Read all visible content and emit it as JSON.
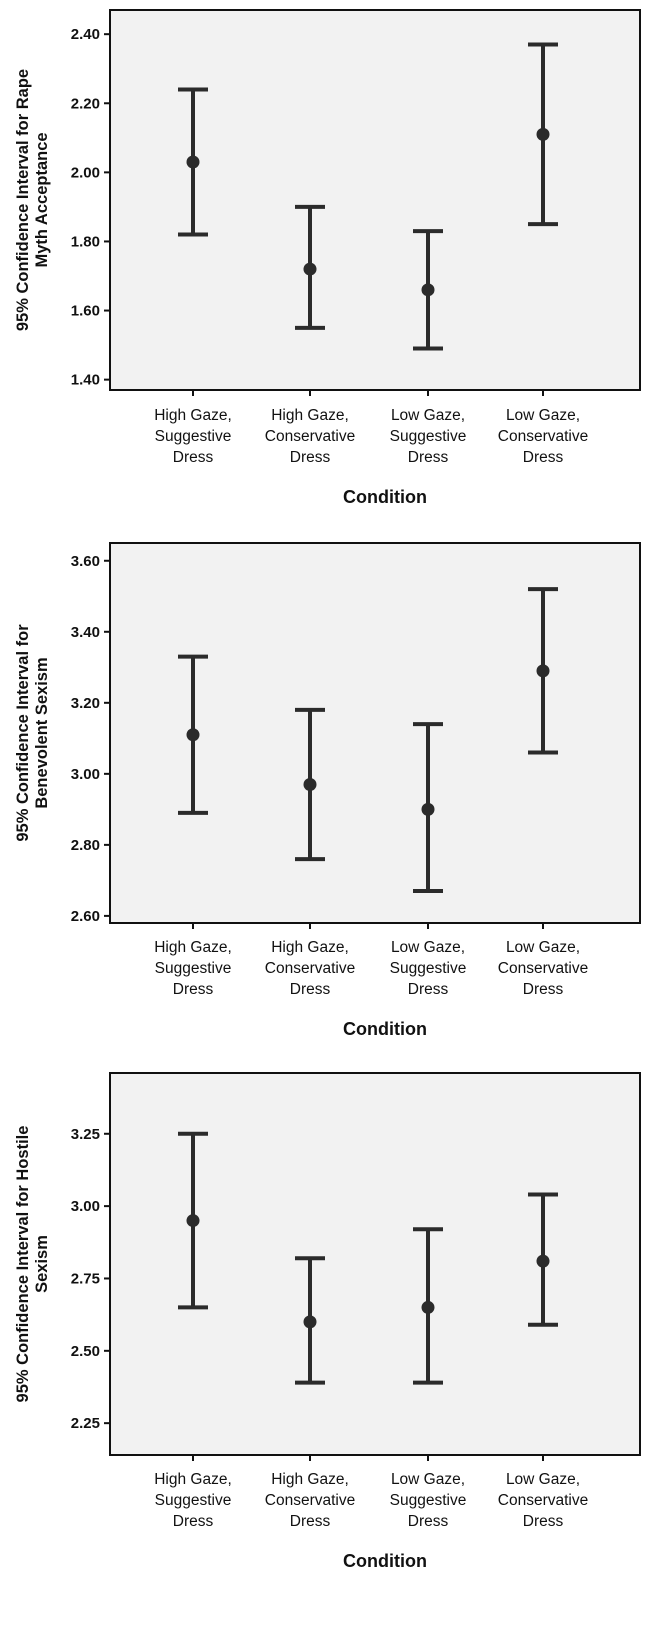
{
  "colors": {
    "plot_bg": "#f2f2f2",
    "frame": "#111111",
    "marker": "#2b2b2b",
    "text": "#111111"
  },
  "chart_data": [
    {
      "type": "errorbar",
      "title": "",
      "xlabel": "Condition",
      "ylabel_lines": [
        "95% Confidence Interval for Rape",
        "Myth Acceptance"
      ],
      "ylim": [
        1.37,
        2.47
      ],
      "yticks": [
        1.4,
        1.6,
        1.8,
        2.0,
        2.2,
        2.4
      ],
      "ytick_labels": [
        "1.40",
        "1.60",
        "1.80",
        "2.00",
        "2.20",
        "2.40"
      ],
      "grid": false,
      "categories": [
        [
          "High Gaze,",
          "Suggestive",
          "Dress"
        ],
        [
          "High Gaze,",
          "Conservative",
          "Dress"
        ],
        [
          "Low Gaze,",
          "Suggestive",
          "Dress"
        ],
        [
          "Low Gaze,",
          "Conservative",
          "Dress"
        ]
      ],
      "means": [
        2.03,
        1.72,
        1.66,
        2.11
      ],
      "lower": [
        1.82,
        1.55,
        1.49,
        1.85
      ],
      "upper": [
        2.24,
        1.9,
        1.83,
        2.37
      ]
    },
    {
      "type": "errorbar",
      "title": "",
      "xlabel": "Condition",
      "ylabel_lines": [
        "95% Confidence Interval for",
        "Benevolent Sexism"
      ],
      "ylim": [
        2.58,
        3.65
      ],
      "yticks": [
        2.6,
        2.8,
        3.0,
        3.2,
        3.4,
        3.6
      ],
      "ytick_labels": [
        "2.60",
        "2.80",
        "3.00",
        "3.20",
        "3.40",
        "3.60"
      ],
      "grid": false,
      "categories": [
        [
          "High Gaze,",
          "Suggestive",
          "Dress"
        ],
        [
          "High Gaze,",
          "Conservative",
          "Dress"
        ],
        [
          "Low Gaze,",
          "Suggestive",
          "Dress"
        ],
        [
          "Low Gaze,",
          "Conservative",
          "Dress"
        ]
      ],
      "means": [
        3.11,
        2.97,
        2.9,
        3.29
      ],
      "lower": [
        2.89,
        2.76,
        2.67,
        3.06
      ],
      "upper": [
        3.33,
        3.18,
        3.14,
        3.52
      ]
    },
    {
      "type": "errorbar",
      "title": "",
      "xlabel": "Condition",
      "ylabel_lines": [
        "95% Confidence Interval for Hostile",
        "Sexism"
      ],
      "ylim": [
        2.14,
        3.46
      ],
      "yticks": [
        2.25,
        2.5,
        2.75,
        3.0,
        3.25
      ],
      "ytick_labels": [
        "2.25",
        "2.50",
        "2.75",
        "3.00",
        "3.25"
      ],
      "grid": false,
      "categories": [
        [
          "High Gaze,",
          "Suggestive",
          "Dress"
        ],
        [
          "High Gaze,",
          "Conservative",
          "Dress"
        ],
        [
          "Low Gaze,",
          "Suggestive",
          "Dress"
        ],
        [
          "Low Gaze,",
          "Conservative",
          "Dress"
        ]
      ],
      "means": [
        2.95,
        2.6,
        2.65,
        2.81
      ],
      "lower": [
        2.65,
        2.39,
        2.39,
        2.59
      ],
      "upper": [
        3.25,
        2.82,
        2.92,
        3.04
      ]
    }
  ]
}
